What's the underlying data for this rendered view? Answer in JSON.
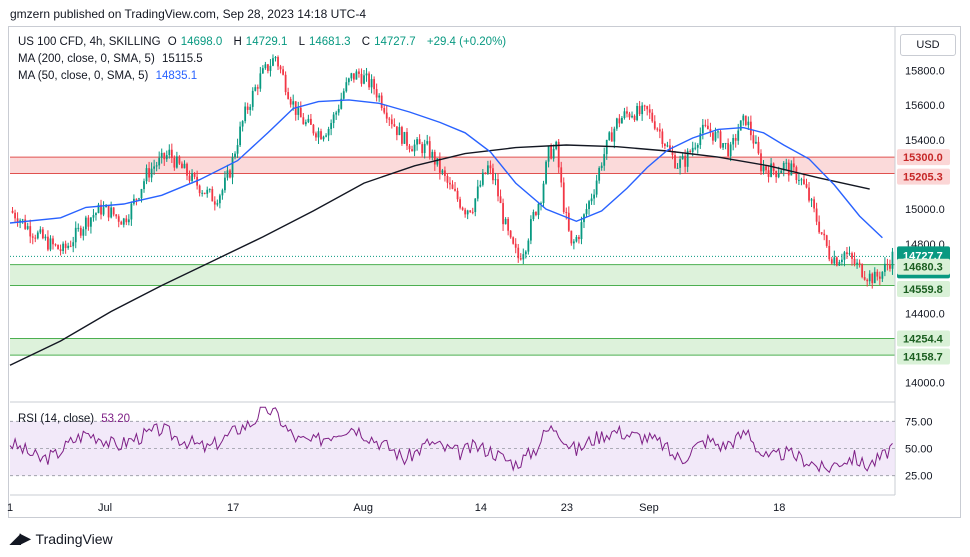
{
  "header": {
    "published": "gmzern published on TradingView.com, Sep 28, 2023 14:18 UTC-4"
  },
  "legend": {
    "symbol": "US 100 CFD, 4h, SKILLING",
    "o_label": "O",
    "o": "14698.0",
    "h_label": "H",
    "h": "14729.1",
    "l_label": "L",
    "l": "14681.3",
    "c_label": "C",
    "c": "14727.7",
    "change": "+29.4 (+0.20%)",
    "ma200_label": "MA (200, close, 0, SMA, 5)",
    "ma200_value": "15115.5",
    "ma50_label": "MA (50, close, 0, SMA, 5)",
    "ma50_value": "14835.1",
    "rsi_label": "RSI (14, close)",
    "rsi_value": "53.20"
  },
  "currency_button": "USD",
  "footer": {
    "brand": "TradingView"
  },
  "colors": {
    "up": "#089981",
    "down": "#f23645",
    "ma200": "#131722",
    "ma50": "#2962ff",
    "rsi": "#7e1f86",
    "resistance_fill": "#fbd6d6",
    "support_fill": "#d9f1d7",
    "support_line": "#4caf50",
    "resistance_line": "#e0514f"
  },
  "chart_data": {
    "type": "candlestick",
    "title": "US 100 CFD, 4h, SKILLING",
    "y_ticks": [
      "15800.0",
      "15600.0",
      "15400.0",
      "15000.0",
      "14800.0",
      "14400.0",
      "14000.0"
    ],
    "ylim": [
      13900,
      16050
    ],
    "x_ticks": [
      "1",
      "Jul",
      "17",
      "Aug",
      "14",
      "23",
      "Sep",
      "18"
    ],
    "last_price": "14727.7",
    "countdown": "02:41:01",
    "resistance_zone": {
      "upper": "15300.0",
      "lower": "15205.3"
    },
    "support_zone_1": {
      "upper": "14680.3",
      "lower": "14559.8"
    },
    "support_zone_2": {
      "upper": "14254.4",
      "lower": "14158.7"
    },
    "close_series": [
      [
        0,
        14990
      ],
      [
        3,
        14960
      ],
      [
        6,
        14910
      ],
      [
        9,
        14870
      ],
      [
        12,
        14840
      ],
      [
        15,
        14805
      ],
      [
        18,
        14780
      ],
      [
        21,
        14760
      ],
      [
        24,
        14810
      ],
      [
        27,
        14870
      ],
      [
        30,
        14930
      ],
      [
        33,
        14970
      ],
      [
        36,
        15000
      ],
      [
        39,
        14990
      ],
      [
        42,
        14960
      ],
      [
        45,
        14935
      ],
      [
        48,
        15010
      ],
      [
        51,
        15100
      ],
      [
        54,
        15200
      ],
      [
        57,
        15250
      ],
      [
        60,
        15280
      ],
      [
        63,
        15320
      ],
      [
        66,
        15260
      ],
      [
        69,
        15220
      ],
      [
        72,
        15170
      ],
      [
        75,
        15130
      ],
      [
        78,
        15090
      ],
      [
        81,
        15060
      ],
      [
        84,
        15110
      ],
      [
        87,
        15220
      ],
      [
        90,
        15400
      ],
      [
        93,
        15550
      ],
      [
        96,
        15660
      ],
      [
        99,
        15760
      ],
      [
        102,
        15820
      ],
      [
        105,
        15880
      ],
      [
        108,
        15760
      ],
      [
        111,
        15640
      ],
      [
        114,
        15540
      ],
      [
        117,
        15490
      ],
      [
        120,
        15460
      ],
      [
        123,
        15440
      ],
      [
        126,
        15470
      ],
      [
        129,
        15560
      ],
      [
        132,
        15680
      ],
      [
        135,
        15760
      ],
      [
        138,
        15780
      ],
      [
        141,
        15740
      ],
      [
        144,
        15700
      ],
      [
        147,
        15620
      ],
      [
        150,
        15540
      ],
      [
        153,
        15460
      ],
      [
        156,
        15400
      ],
      [
        159,
        15370
      ],
      [
        162,
        15360
      ],
      [
        165,
        15350
      ],
      [
        168,
        15280
      ],
      [
        171,
        15200
      ],
      [
        174,
        15120
      ],
      [
        177,
        15060
      ],
      [
        180,
        15000
      ],
      [
        183,
        15020
      ],
      [
        186,
        15140
      ],
      [
        189,
        15240
      ],
      [
        192,
        15150
      ],
      [
        195,
        14950
      ],
      [
        198,
        14800
      ],
      [
        201,
        14720
      ],
      [
        204,
        14800
      ],
      [
        207,
        14960
      ],
      [
        210,
        15080
      ],
      [
        213,
        15320
      ],
      [
        216,
        15350
      ],
      [
        219,
        15020
      ],
      [
        222,
        14780
      ],
      [
        225,
        14860
      ],
      [
        228,
        15000
      ],
      [
        231,
        15120
      ],
      [
        234,
        15280
      ],
      [
        237,
        15400
      ],
      [
        240,
        15500
      ],
      [
        243,
        15540
      ],
      [
        246,
        15560
      ],
      [
        249,
        15550
      ],
      [
        252,
        15560
      ],
      [
        255,
        15500
      ],
      [
        258,
        15420
      ],
      [
        261,
        15320
      ],
      [
        264,
        15260
      ],
      [
        267,
        15280
      ],
      [
        270,
        15360
      ],
      [
        273,
        15440
      ],
      [
        276,
        15460
      ],
      [
        279,
        15420
      ],
      [
        282,
        15380
      ],
      [
        285,
        15330
      ],
      [
        288,
        15460
      ],
      [
        291,
        15520
      ],
      [
        294,
        15400
      ],
      [
        297,
        15250
      ],
      [
        300,
        15230
      ],
      [
        303,
        15220
      ],
      [
        306,
        15250
      ],
      [
        309,
        15220
      ],
      [
        312,
        15190
      ],
      [
        315,
        15100
      ],
      [
        318,
        14980
      ],
      [
        321,
        14860
      ],
      [
        324,
        14740
      ],
      [
        327,
        14710
      ],
      [
        330,
        14750
      ],
      [
        333,
        14700
      ],
      [
        336,
        14660
      ],
      [
        339,
        14620
      ],
      [
        342,
        14600
      ],
      [
        345,
        14640
      ],
      [
        348,
        14700
      ],
      [
        349,
        14727.7
      ]
    ],
    "ma200_series": [
      [
        0,
        14100
      ],
      [
        20,
        14240
      ],
      [
        40,
        14410
      ],
      [
        60,
        14560
      ],
      [
        80,
        14700
      ],
      [
        100,
        14840
      ],
      [
        120,
        14990
      ],
      [
        140,
        15150
      ],
      [
        160,
        15250
      ],
      [
        180,
        15320
      ],
      [
        200,
        15355
      ],
      [
        220,
        15370
      ],
      [
        240,
        15360
      ],
      [
        260,
        15335
      ],
      [
        280,
        15300
      ],
      [
        300,
        15250
      ],
      [
        320,
        15180
      ],
      [
        340,
        15115.5
      ]
    ],
    "ma50_series": [
      [
        0,
        14920
      ],
      [
        20,
        14950
      ],
      [
        30,
        15010
      ],
      [
        45,
        15030
      ],
      [
        60,
        15080
      ],
      [
        75,
        15170
      ],
      [
        90,
        15280
      ],
      [
        102,
        15440
      ],
      [
        112,
        15580
      ],
      [
        122,
        15620
      ],
      [
        134,
        15630
      ],
      [
        146,
        15610
      ],
      [
        158,
        15560
      ],
      [
        170,
        15500
      ],
      [
        180,
        15440
      ],
      [
        190,
        15330
      ],
      [
        200,
        15150
      ],
      [
        212,
        15000
      ],
      [
        224,
        14930
      ],
      [
        234,
        14990
      ],
      [
        244,
        15120
      ],
      [
        252,
        15240
      ],
      [
        260,
        15340
      ],
      [
        270,
        15410
      ],
      [
        280,
        15460
      ],
      [
        290,
        15470
      ],
      [
        298,
        15440
      ],
      [
        306,
        15370
      ],
      [
        316,
        15290
      ],
      [
        326,
        15140
      ],
      [
        336,
        14960
      ],
      [
        345,
        14835.1
      ]
    ],
    "rsi": {
      "levels": [
        "75.00",
        "50.00",
        "25.00"
      ],
      "ylim": [
        10,
        90
      ],
      "series": [
        [
          0,
          55
        ],
        [
          6,
          48
        ],
        [
          12,
          40
        ],
        [
          18,
          44
        ],
        [
          24,
          56
        ],
        [
          30,
          64
        ],
        [
          36,
          60
        ],
        [
          42,
          52
        ],
        [
          48,
          58
        ],
        [
          54,
          63
        ],
        [
          60,
          68
        ],
        [
          66,
          60
        ],
        [
          72,
          55
        ],
        [
          78,
          50
        ],
        [
          84,
          58
        ],
        [
          90,
          68
        ],
        [
          96,
          74
        ],
        [
          99,
          84
        ],
        [
          102,
          86
        ],
        [
          106,
          80
        ],
        [
          110,
          66
        ],
        [
          114,
          58
        ],
        [
          120,
          56
        ],
        [
          126,
          62
        ],
        [
          132,
          68
        ],
        [
          136,
          70
        ],
        [
          140,
          64
        ],
        [
          146,
          56
        ],
        [
          152,
          48
        ],
        [
          156,
          40
        ],
        [
          160,
          46
        ],
        [
          166,
          56
        ],
        [
          172,
          50
        ],
        [
          178,
          46
        ],
        [
          184,
          52
        ],
        [
          190,
          48
        ],
        [
          196,
          40
        ],
        [
          200,
          36
        ],
        [
          204,
          42
        ],
        [
          208,
          50
        ],
        [
          212,
          66
        ],
        [
          216,
          70
        ],
        [
          220,
          56
        ],
        [
          224,
          48
        ],
        [
          230,
          58
        ],
        [
          236,
          64
        ],
        [
          240,
          66
        ],
        [
          246,
          62
        ],
        [
          252,
          60
        ],
        [
          258,
          54
        ],
        [
          262,
          44
        ],
        [
          266,
          40
        ],
        [
          270,
          50
        ],
        [
          276,
          58
        ],
        [
          282,
          52
        ],
        [
          288,
          60
        ],
        [
          292,
          66
        ],
        [
          296,
          48
        ],
        [
          300,
          40
        ],
        [
          306,
          46
        ],
        [
          312,
          42
        ],
        [
          318,
          36
        ],
        [
          322,
          30
        ],
        [
          328,
          38
        ],
        [
          334,
          42
        ],
        [
          338,
          34
        ],
        [
          342,
          38
        ],
        [
          346,
          44
        ],
        [
          349,
          53.2
        ]
      ]
    }
  }
}
